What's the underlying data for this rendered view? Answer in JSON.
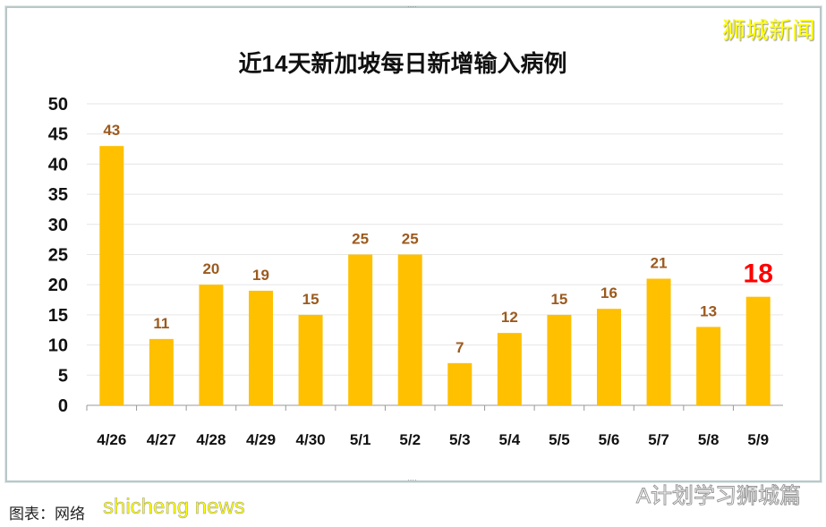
{
  "watermark_top": "狮城新闻",
  "watermark_bottom": "A计划学习狮城篇",
  "source": "图表：网络",
  "watermark_source": "shicheng news",
  "colors": {
    "bar": "#FFC000",
    "label": "#9C5A1E",
    "highlight": "#FF0000"
  },
  "chart_data": {
    "type": "bar",
    "title": "近14天新加坡每日新增输入病例",
    "categories": [
      "4/26",
      "4/27",
      "4/28",
      "4/29",
      "4/30",
      "5/1",
      "5/2",
      "5/3",
      "5/4",
      "5/5",
      "5/6",
      "5/7",
      "5/8",
      "5/9"
    ],
    "values": [
      43,
      11,
      20,
      19,
      15,
      25,
      25,
      7,
      12,
      15,
      16,
      21,
      13,
      18
    ],
    "highlight_last": true,
    "ylim": [
      0,
      50
    ],
    "yticks": [
      0,
      5,
      10,
      15,
      20,
      25,
      30,
      35,
      40,
      45,
      50
    ],
    "grid": true
  }
}
